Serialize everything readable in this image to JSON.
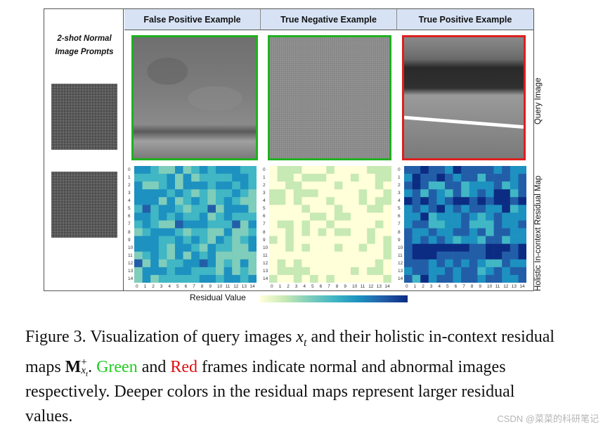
{
  "figure": {
    "prompt_title_line1": "2-shot Normal",
    "prompt_title_line2": "Image Prompts",
    "columns": [
      {
        "label": "False Positive Example",
        "frame": "green",
        "frame_color": "#20b020"
      },
      {
        "label": "True Negative Example",
        "frame": "green",
        "frame_color": "#20b020"
      },
      {
        "label": "True Positive Example",
        "frame": "red",
        "frame_color": "#dd1f1f"
      }
    ],
    "row_labels": [
      "Query Image",
      "Holistic In-context Residual Map"
    ],
    "axis_ticks": [
      "0",
      "1",
      "2",
      "3",
      "4",
      "5",
      "6",
      "7",
      "8",
      "9",
      "10",
      "11",
      "12",
      "13",
      "14"
    ],
    "colorbar_label": "Residual Value",
    "colormap": [
      "#ffffd9",
      "#c7e9b4",
      "#7fcdbb",
      "#41b6c4",
      "#1d91c0",
      "#225ea8",
      "#0c2c84"
    ]
  },
  "caption": {
    "prefix": "Figure 3.  Visualization of query images ",
    "var_x": "x",
    "sub_t": "t",
    "mid1": " and their holistic in-context residual maps ",
    "var_M": "M",
    "sup_plus": "+",
    "sub_xt": "x",
    "sub_xt_t": "t",
    "mid2": ".  ",
    "green_word": "Green",
    "and_word": " and ",
    "red_word": "Red",
    "rest": " frames indicate normal and abnormal images respectively. Deeper colors in the residual maps represent larger residual values."
  },
  "watermark": "CSDN @菜菜的科研笔记"
}
